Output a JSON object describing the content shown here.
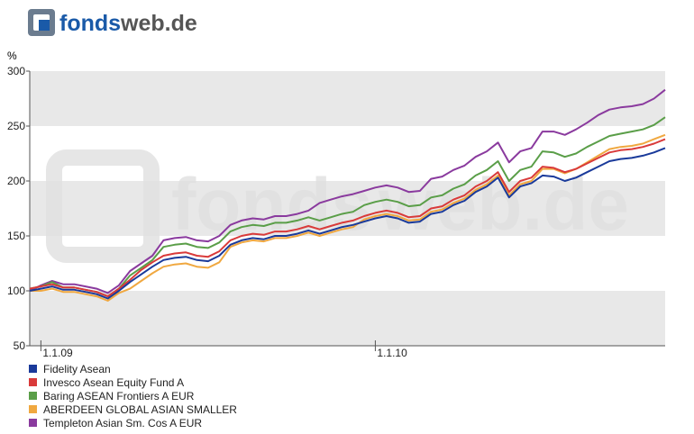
{
  "header": {
    "logo_left": "fonds",
    "logo_right": "web.de"
  },
  "chart_data": {
    "type": "line",
    "y_label": "%",
    "ylim": [
      50,
      300
    ],
    "yticks": [
      50,
      100,
      150,
      200,
      250,
      300
    ],
    "categories": [
      null,
      "1.1.09",
      null,
      null,
      null,
      null,
      null,
      null,
      null,
      null,
      null,
      null,
      null,
      null,
      null,
      null,
      null,
      null,
      null,
      null,
      null,
      null,
      null,
      null,
      null,
      null,
      null,
      null,
      null,
      null,
      null,
      "1.1.10",
      null,
      null,
      null,
      null,
      null,
      null,
      null,
      null,
      null,
      null,
      null,
      null,
      null,
      null,
      null,
      null,
      null,
      null,
      null,
      null,
      null,
      null,
      null,
      null,
      null,
      null
    ],
    "series": [
      {
        "name": "Fidelity Asean",
        "color": "#1a3a9a",
        "values": [
          100,
          102,
          104,
          101,
          101,
          99,
          97,
          93,
          100,
          108,
          115,
          122,
          128,
          130,
          131,
          128,
          127,
          132,
          142,
          146,
          148,
          147,
          150,
          150,
          152,
          155,
          152,
          155,
          158,
          160,
          163,
          166,
          168,
          166,
          162,
          163,
          170,
          172,
          178,
          182,
          190,
          195,
          203,
          185,
          195,
          198,
          205,
          204,
          200,
          203,
          208,
          213,
          218,
          220,
          221,
          223,
          226,
          230
        ]
      },
      {
        "name": "Invesco Asean Equity Fund A",
        "color": "#d93a3a",
        "values": [
          102,
          104,
          106,
          103,
          103,
          101,
          99,
          95,
          102,
          110,
          119,
          126,
          132,
          134,
          135,
          132,
          131,
          136,
          146,
          150,
          152,
          151,
          154,
          154,
          156,
          159,
          156,
          159,
          162,
          164,
          168,
          171,
          173,
          171,
          167,
          168,
          175,
          177,
          183,
          187,
          195,
          200,
          208,
          190,
          200,
          203,
          213,
          212,
          208,
          211,
          216,
          221,
          226,
          228,
          229,
          231,
          234,
          238
        ]
      },
      {
        "name": "Baring ASEAN Frontiers A EUR",
        "color": "#5a9e48",
        "values": [
          102,
          104,
          108,
          103,
          103,
          101,
          99,
          95,
          102,
          114,
          121,
          128,
          140,
          142,
          143,
          140,
          139,
          144,
          154,
          158,
          160,
          159,
          162,
          162,
          164,
          167,
          164,
          167,
          170,
          172,
          178,
          181,
          183,
          181,
          177,
          178,
          185,
          187,
          193,
          197,
          205,
          210,
          218,
          200,
          210,
          213,
          227,
          226,
          222,
          225,
          231,
          236,
          241,
          243,
          245,
          247,
          251,
          258
        ]
      },
      {
        "name": "ABERDEEN GLOBAL ASIAN SMALLER",
        "color": "#f0a840",
        "values": [
          100,
          100,
          102,
          99,
          99,
          97,
          95,
          91,
          98,
          102,
          109,
          116,
          122,
          124,
          125,
          122,
          121,
          126,
          140,
          144,
          146,
          145,
          148,
          148,
          150,
          153,
          150,
          153,
          156,
          158,
          165,
          168,
          170,
          168,
          164,
          165,
          172,
          174,
          180,
          184,
          192,
          197,
          205,
          187,
          197,
          200,
          211,
          211,
          207,
          211,
          217,
          223,
          229,
          231,
          232,
          234,
          238,
          242
        ]
      },
      {
        "name": "Templeton Asian Sm. Cos A EUR",
        "color": "#8a3a9e",
        "values": [
          100,
          105,
          109,
          106,
          106,
          104,
          102,
          98,
          105,
          118,
          125,
          132,
          146,
          148,
          149,
          146,
          145,
          150,
          160,
          164,
          166,
          165,
          168,
          168,
          170,
          173,
          180,
          183,
          186,
          188,
          191,
          194,
          196,
          194,
          190,
          191,
          202,
          204,
          210,
          214,
          222,
          227,
          235,
          217,
          227,
          230,
          245,
          245,
          242,
          247,
          253,
          260,
          265,
          267,
          268,
          270,
          275,
          283
        ]
      }
    ]
  }
}
